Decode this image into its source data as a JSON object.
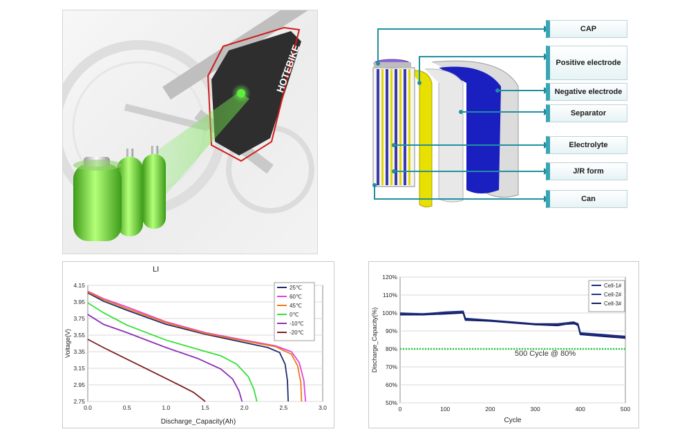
{
  "bike_illustration": {
    "brand_text": "HOTEBIKE"
  },
  "cell_structure": {
    "labels": [
      "CAP",
      "Positive electrode",
      "Negative electrode",
      "Separator",
      "Electrolyte",
      "J/R form",
      "Can"
    ],
    "colors": {
      "accent": "#1f8fa0",
      "positive": "#e8e000",
      "negative": "#1a1fc0",
      "separator": "#d9d9d9"
    }
  },
  "chart_data": [
    {
      "type": "line",
      "title": "LI",
      "xlabel": "Discharge_Capacity(Ah)",
      "ylabel": "Voltage(V)",
      "xlim": [
        0.0,
        3.0
      ],
      "ylim": [
        2.75,
        4.15
      ],
      "xticks": [
        "0.0",
        "0.5",
        "1.0",
        "1.5",
        "2.0",
        "2.5",
        "3.0"
      ],
      "yticks": [
        "2.75",
        "2.95",
        "3.15",
        "3.35",
        "3.55",
        "3.75",
        "3.95",
        "4.15"
      ],
      "legend_position": "top-right",
      "series": [
        {
          "name": "25℃",
          "color": "#1f2a6b",
          "x": [
            0,
            0.2,
            0.5,
            1.0,
            1.5,
            2.0,
            2.3,
            2.45,
            2.52,
            2.55,
            2.56
          ],
          "y": [
            4.06,
            3.96,
            3.85,
            3.68,
            3.56,
            3.46,
            3.4,
            3.34,
            3.2,
            3.0,
            2.75
          ]
        },
        {
          "name": "60℃",
          "color": "#e040e0",
          "x": [
            0,
            0.2,
            0.5,
            1.0,
            1.5,
            2.0,
            2.4,
            2.6,
            2.7,
            2.76,
            2.78
          ],
          "y": [
            4.08,
            3.99,
            3.89,
            3.71,
            3.58,
            3.49,
            3.42,
            3.35,
            3.22,
            3.0,
            2.75
          ]
        },
        {
          "name": "45℃",
          "color": "#f07a10",
          "x": [
            0,
            0.2,
            0.5,
            1.0,
            1.5,
            2.0,
            2.4,
            2.6,
            2.68,
            2.72,
            2.73
          ],
          "y": [
            4.07,
            3.98,
            3.87,
            3.7,
            3.57,
            3.48,
            3.41,
            3.32,
            3.18,
            2.98,
            2.75
          ]
        },
        {
          "name": "0℃",
          "color": "#33e033",
          "x": [
            0,
            0.2,
            0.5,
            1.0,
            1.4,
            1.7,
            1.9,
            2.05,
            2.12,
            2.16
          ],
          "y": [
            3.94,
            3.82,
            3.67,
            3.49,
            3.38,
            3.3,
            3.2,
            3.05,
            2.9,
            2.75
          ]
        },
        {
          "name": "-10℃",
          "color": "#8a2fb5",
          "x": [
            0,
            0.2,
            0.5,
            1.0,
            1.4,
            1.7,
            1.85,
            1.93,
            1.97
          ],
          "y": [
            3.8,
            3.68,
            3.58,
            3.4,
            3.27,
            3.14,
            3.02,
            2.88,
            2.75
          ]
        },
        {
          "name": "-20℃",
          "color": "#7a2020",
          "x": [
            0,
            0.2,
            0.5,
            0.8,
            1.1,
            1.35,
            1.5
          ],
          "y": [
            3.5,
            3.4,
            3.26,
            3.12,
            2.98,
            2.86,
            2.75
          ]
        }
      ]
    },
    {
      "type": "line",
      "title": "",
      "xlabel": "Cycle",
      "ylabel": "Discharge_Capacity(%)",
      "xlim": [
        0,
        500
      ],
      "ylim": [
        50,
        120
      ],
      "xticks": [
        "0",
        "100",
        "200",
        "300",
        "400",
        "500"
      ],
      "yticks": [
        "50%",
        "60%",
        "70%",
        "80%",
        "90%",
        "100%",
        "110%",
        "120%"
      ],
      "legend_position": "top-right",
      "reference_line": {
        "y": 80,
        "color": "#22cc44"
      },
      "annotation": "500 Cycle @ 80%",
      "series": [
        {
          "name": "Cell-1#",
          "color": "#1a2a7a",
          "x": [
            0,
            50,
            100,
            140,
            145,
            200,
            250,
            300,
            350,
            385,
            395,
            400,
            450,
            500
          ],
          "y": [
            100,
            99.5,
            100.5,
            101,
            97,
            96,
            95,
            94,
            94,
            95,
            94,
            89,
            88,
            87
          ]
        },
        {
          "name": "Cell-2#",
          "color": "#23308f",
          "x": [
            0,
            50,
            100,
            140,
            145,
            200,
            250,
            300,
            350,
            385,
            395,
            400,
            450,
            500
          ],
          "y": [
            99.5,
            99,
            100,
            100.5,
            96.5,
            95.5,
            95,
            93.5,
            93.5,
            94,
            93.5,
            88.5,
            87.5,
            86.5
          ]
        },
        {
          "name": "Cell-3#",
          "color": "#0f1c5e",
          "x": [
            0,
            50,
            100,
            140,
            145,
            200,
            250,
            300,
            350,
            385,
            395,
            400,
            450,
            500
          ],
          "y": [
            99,
            99,
            99.5,
            100,
            96,
            95.5,
            94.5,
            93.5,
            93,
            94.5,
            93,
            88,
            87,
            86
          ]
        }
      ]
    }
  ]
}
